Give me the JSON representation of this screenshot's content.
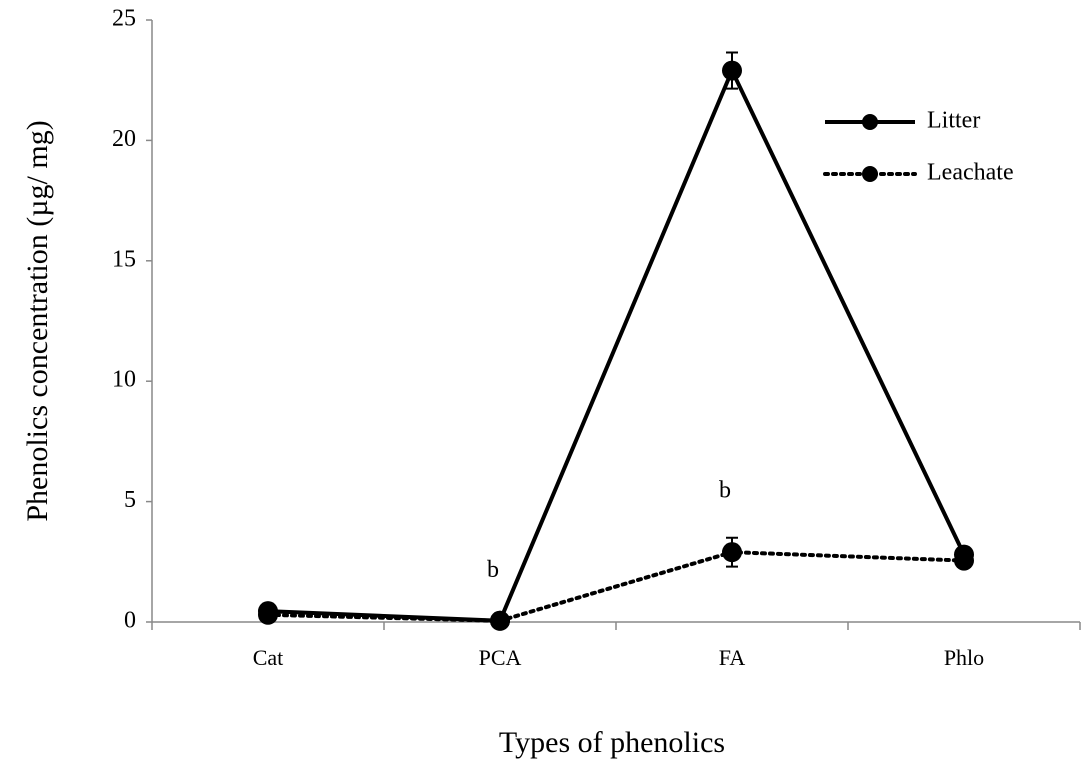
{
  "chart_data": {
    "type": "line",
    "x_label": "Types of phenolics",
    "y_label": "Phenolics concentration (µg/ mg)",
    "categories": [
      "Cat",
      "PCA",
      "FA",
      "Phlo"
    ],
    "series": [
      {
        "name": "Litter",
        "color": "#000000",
        "style": "solid",
        "values": [
          0.45,
          0.05,
          22.9,
          2.8
        ],
        "errors": [
          0.1,
          0.05,
          0.75,
          0.1
        ]
      },
      {
        "name": "Leachate",
        "color": "#000000",
        "style": "dotted",
        "values": [
          0.3,
          0.05,
          2.9,
          2.55
        ],
        "errors": [
          0.05,
          0.05,
          0.6,
          0.1
        ]
      }
    ],
    "annotations": [
      {
        "text": "b",
        "x": "PCA",
        "y": 2.1
      },
      {
        "text": "b",
        "x": "FA",
        "y": 5.4
      }
    ],
    "ylim": [
      0,
      25
    ],
    "yticks": [
      0,
      5,
      10,
      15,
      20,
      25
    ],
    "legend": "upper-right"
  }
}
